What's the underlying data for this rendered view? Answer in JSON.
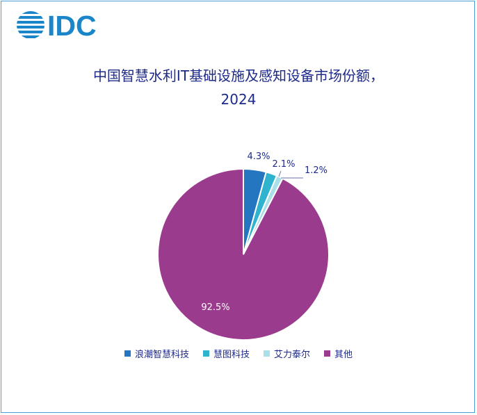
{
  "logo": {
    "text": "IDC"
  },
  "chart_data": {
    "type": "pie",
    "title_line1": "中国智慧水利IT基础设施及感知设备市场份额，",
    "title_line2": "2024",
    "slices": [
      {
        "name": "浪潮智慧科技",
        "value": 4.3,
        "label": "4.3%",
        "color": "#2376bf"
      },
      {
        "name": "慧图科技",
        "value": 2.1,
        "label": "2.1%",
        "color": "#30b3cf"
      },
      {
        "name": "艾力泰尔",
        "value": 1.2,
        "label": "1.2%",
        "color": "#a8dfe8"
      },
      {
        "name": "其他",
        "value": 92.5,
        "label": "92.5%",
        "color": "#9b3b8e"
      }
    ],
    "legend_position": "bottom"
  }
}
